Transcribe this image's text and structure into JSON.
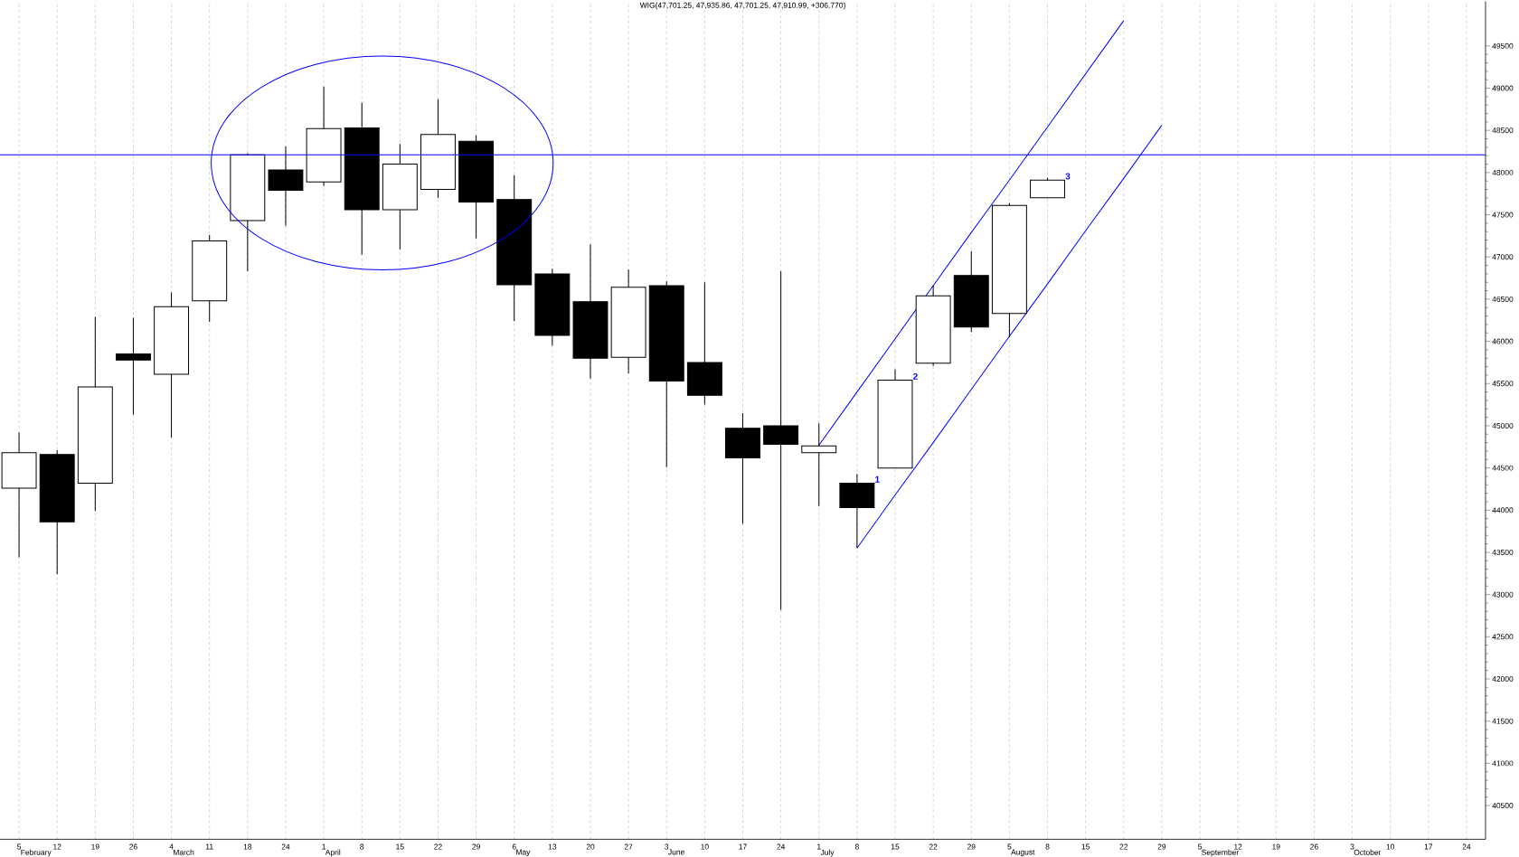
{
  "chart_data": {
    "type": "candlestick",
    "title": "WIG(47,701.25, 47,935.86, 47,701.25, 47,910.99, +306.770)",
    "categories": [
      "5",
      "12",
      "19",
      "26",
      "4",
      "11",
      "18",
      "24",
      "1",
      "8",
      "15",
      "22",
      "29",
      "6",
      "13",
      "20",
      "27",
      "3",
      "10",
      "17",
      "24",
      "1",
      "8",
      "15",
      "22",
      "29",
      "5",
      "8",
      "15",
      "22",
      "29",
      "5",
      "12",
      "19",
      "26",
      "3",
      "10",
      "17",
      "24"
    ],
    "y2lim": [
      40100,
      50030
    ],
    "y2ticks": [
      40500,
      41000,
      41500,
      42000,
      42500,
      43000,
      43500,
      44000,
      44500,
      45000,
      45500,
      46000,
      46500,
      47000,
      47500,
      48000,
      48500,
      49000,
      49500
    ],
    "grid": "x",
    "series": [
      {
        "axis": "y2",
        "color": "#000000",
        "ohlc": [
          [
            44260,
            44920,
            43440,
            44680
          ],
          [
            44660,
            44710,
            43240,
            43860
          ],
          [
            44320,
            46290,
            43990,
            45460
          ],
          [
            45850,
            46280,
            45130,
            45780
          ],
          [
            45610,
            46580,
            44860,
            46410
          ],
          [
            46480,
            47260,
            46230,
            47190
          ],
          [
            47430,
            48230,
            46830,
            48210
          ],
          [
            48030,
            48310,
            47370,
            47790
          ],
          [
            47890,
            49020,
            47840,
            48520
          ],
          [
            48530,
            48830,
            47030,
            47560
          ],
          [
            47560,
            48340,
            47090,
            48100
          ],
          [
            47800,
            48870,
            47700,
            48450
          ],
          [
            48370,
            48440,
            47220,
            47650
          ],
          [
            47680,
            47970,
            46240,
            46670
          ],
          [
            46800,
            46860,
            45950,
            46070
          ],
          [
            46470,
            47150,
            45560,
            45800
          ],
          [
            45810,
            46850,
            45620,
            46640
          ],
          [
            46660,
            46710,
            44510,
            45530
          ],
          [
            45750,
            46700,
            45250,
            45360
          ],
          [
            44970,
            45150,
            43840,
            44620
          ],
          [
            45000,
            46830,
            42820,
            44780
          ],
          [
            44680,
            45030,
            44050,
            44760
          ],
          [
            44320,
            44430,
            43550,
            44030
          ],
          [
            44500,
            45670,
            44500,
            45540
          ],
          [
            45740,
            46660,
            45710,
            46540
          ],
          [
            46780,
            47070,
            46110,
            46170
          ],
          [
            46330,
            47640,
            46050,
            47610
          ],
          [
            47701.25,
            47935.86,
            47701.25,
            47910.99
          ],
          null,
          null,
          null,
          null,
          null,
          null,
          null,
          null,
          null,
          null,
          null
        ],
        "value_labels": [
          null,
          null,
          null,
          null,
          null,
          null,
          null,
          null,
          null,
          null,
          null,
          null,
          null,
          null,
          null,
          null,
          null,
          null,
          null,
          null,
          null,
          null,
          "1",
          "2",
          null,
          null,
          null,
          "3",
          null,
          null,
          null,
          null,
          null,
          null,
          null,
          null,
          null,
          null,
          null
        ]
      },
      {
        "type": "line",
        "axis": "y2",
        "color": "#0000ff",
        "values": [
          null,
          null,
          null,
          null,
          null,
          null,
          null,
          null,
          null,
          null,
          null,
          null,
          null,
          null,
          null,
          null,
          null,
          null,
          null,
          null,
          null,
          44770,
          45400,
          46030,
          46660,
          47290,
          47910,
          48540,
          49170,
          49800,
          null,
          null,
          null,
          null,
          null,
          null,
          null,
          null,
          null
        ]
      },
      {
        "type": "line",
        "axis": "y2",
        "color": "#0000ff",
        "values": [
          null,
          null,
          null,
          null,
          null,
          null,
          null,
          null,
          null,
          null,
          null,
          null,
          null,
          null,
          null,
          null,
          null,
          null,
          null,
          null,
          null,
          null,
          43550,
          44180,
          44800,
          45430,
          46060,
          46680,
          47310,
          47930,
          48560,
          null,
          null,
          null,
          null,
          null,
          null,
          null,
          null
        ]
      }
    ],
    "ref_lines": [
      {
        "axis": "y2",
        "value": 48210,
        "color": "#0000ff"
      }
    ],
    "annotations": [
      "February",
      "March",
      "April",
      "May",
      "June",
      "July",
      "August",
      "September",
      "October"
    ]
  }
}
